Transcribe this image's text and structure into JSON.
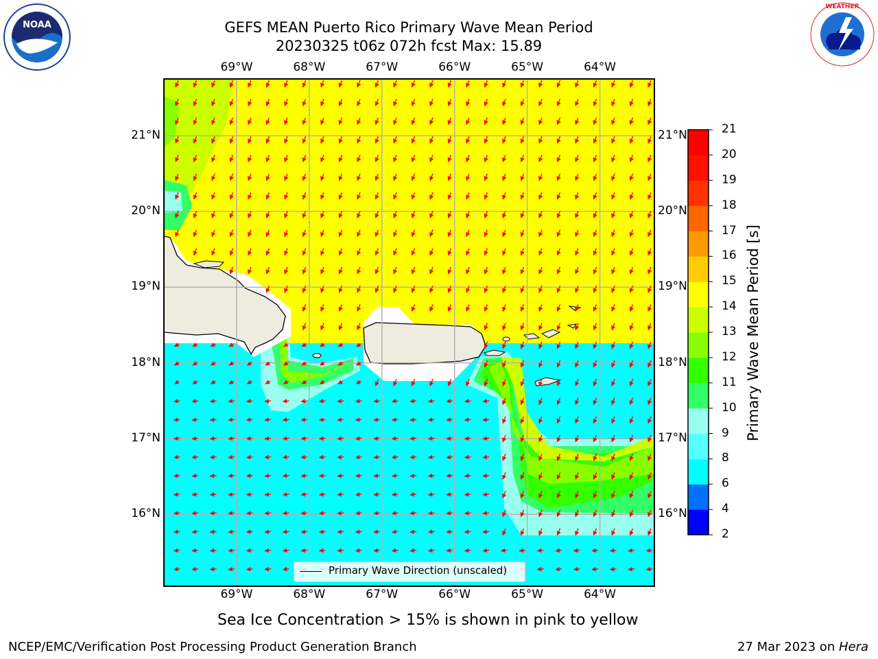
{
  "header": {
    "title_line1": "GEFS MEAN Puerto Rico Primary Wave Mean Period",
    "title_line2": "20230325 t06z 072h fcst   Max: 15.89"
  },
  "logos": {
    "left": {
      "name": "NOAA",
      "ring_text": "NATIONAL OCEANIC AND ATMOSPHERIC ADMINISTRATION",
      "bottom_text": "U.S. DEPARTMENT OF COMMERCE"
    },
    "right": {
      "ring_text": "NATIONAL WEATHER SERVICE"
    }
  },
  "axes": {
    "x_ticks_top": [
      "69°W",
      "68°W",
      "67°W",
      "66°W",
      "65°W",
      "64°W"
    ],
    "x_ticks_bottom": [
      "69°W",
      "68°W",
      "67°W",
      "66°W",
      "65°W",
      "64°W"
    ],
    "y_ticks_left": [
      "21°N",
      "20°N",
      "19°N",
      "18°N",
      "17°N",
      "16°N"
    ],
    "y_ticks_right": [
      "21°N",
      "20°N",
      "19°N",
      "18°N",
      "17°N",
      "16°N"
    ]
  },
  "legend": {
    "label": "Primary Wave Direction (unscaled)"
  },
  "colorbar": {
    "label": "Primary Wave Mean Period [s]",
    "ticks": [
      "21",
      "20",
      "19",
      "18",
      "17",
      "16",
      "15",
      "14",
      "13",
      "12",
      "11",
      "10",
      "9",
      "8",
      "6",
      "4",
      "2"
    ],
    "levels": [
      2,
      4,
      6,
      8,
      9,
      10,
      11,
      12,
      13,
      14,
      15,
      16,
      17,
      18,
      19,
      20,
      21
    ],
    "colors": [
      "#0000ff",
      "#0070ff",
      "#00ffff",
      "#55ffff",
      "#99ffee",
      "#33ff66",
      "#33ff00",
      "#88ff00",
      "#ccff00",
      "#ffff00",
      "#ffcc00",
      "#ff9900",
      "#ff6600",
      "#ff3300",
      "#ff1100",
      "#ff0000"
    ]
  },
  "map": {
    "lon_range": [
      -70,
      -63.25
    ],
    "lat_range": [
      15.05,
      21.75
    ],
    "land_color": "#eeecdf",
    "arrow_color": "#ff0000"
  },
  "caption": "Sea Ice Concentration > 15% is shown in pink to yellow",
  "footer": {
    "left": "NCEP/EMC/Verification Post Processing Product Generation Branch",
    "right_prefix": "27 Mar 2023 on ",
    "right_host": "Hera"
  }
}
